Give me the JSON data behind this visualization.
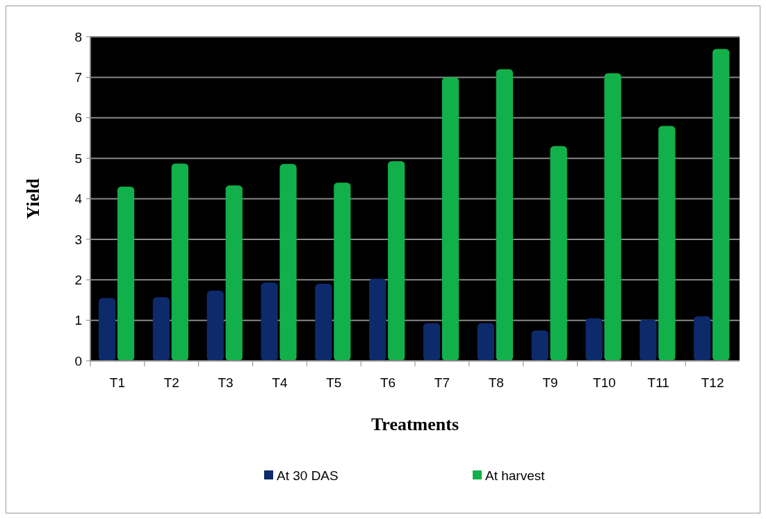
{
  "chart_data": {
    "type": "bar",
    "xlabel": "Treatments",
    "ylabel": "Yield",
    "categories": [
      "T1",
      "T2",
      "T3",
      "T4",
      "T5",
      "T6",
      "T7",
      "T8",
      "T9",
      "T10",
      "T11",
      "T12"
    ],
    "series": [
      {
        "name": "At 30 DAS",
        "color": "#0d2a6b",
        "values": [
          1.55,
          1.57,
          1.73,
          1.93,
          1.9,
          2.03,
          0.93,
          0.93,
          0.75,
          1.05,
          1.02,
          1.1
        ]
      },
      {
        "name": "At harvest",
        "color": "#12b04a",
        "values": [
          4.3,
          4.87,
          4.33,
          4.86,
          4.4,
          4.93,
          7.0,
          7.2,
          5.3,
          7.1,
          5.8,
          7.7
        ]
      }
    ],
    "ylim": [
      0,
      8
    ],
    "yticks": [
      0,
      1,
      2,
      3,
      4,
      5,
      6,
      7,
      8
    ],
    "grid": "y",
    "legend": "bottom"
  }
}
